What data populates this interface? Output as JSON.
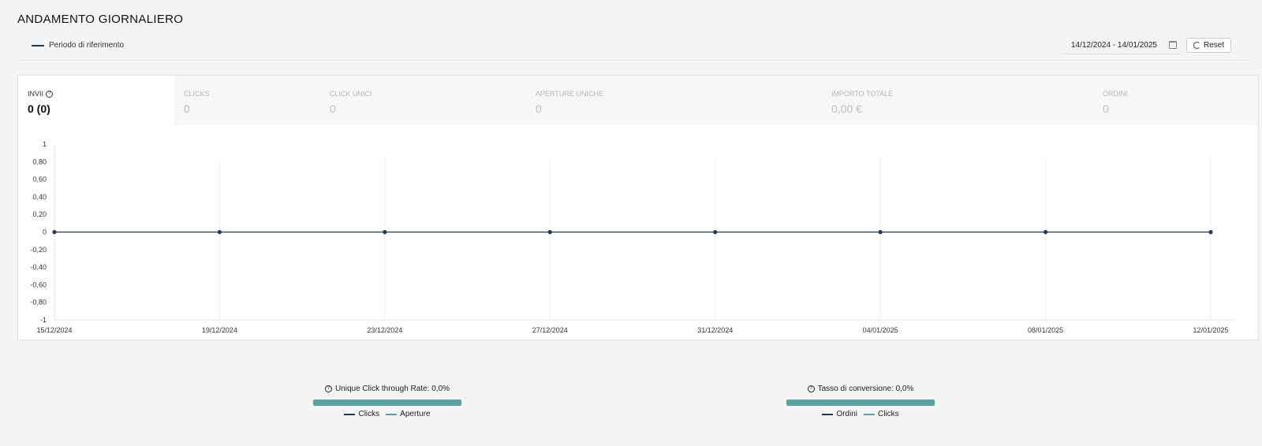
{
  "header": {
    "title": "ANDAMENTO GIORNALIERO",
    "legend_label": "Periodo di riferimento"
  },
  "date_range": {
    "value": "14/12/2024 - 14/01/2025",
    "reset_label": "Reset"
  },
  "tabs": [
    {
      "label": "INVII",
      "value": "0 (0)",
      "active": true,
      "help": true
    },
    {
      "label": "CLICKS",
      "value": "0"
    },
    {
      "label": "CLICK UNICI",
      "value": "0"
    },
    {
      "label": "APERTURE UNICHE",
      "value": "0"
    },
    {
      "label": "IMPORTO TOTALE",
      "value": "0,00 €"
    },
    {
      "label": "ORDINI",
      "value": "0"
    }
  ],
  "chart_data": {
    "type": "line",
    "x": [
      "15/12/2024",
      "19/12/2024",
      "23/12/2024",
      "27/12/2024",
      "31/12/2024",
      "04/01/2025",
      "08/01/2025",
      "12/01/2025"
    ],
    "series": [
      {
        "values": [
          0,
          0,
          0,
          0,
          0,
          0,
          0,
          0
        ],
        "color": "#1f3b5a"
      }
    ],
    "y_ticks": [
      "1",
      "0,80",
      "0,60",
      "0,40",
      "0,20",
      "0",
      "-0,20",
      "-0,40",
      "-0,60",
      "-0,80",
      "-1"
    ],
    "ylim": [
      -1,
      1
    ],
    "grid": "vertical"
  },
  "metrics": [
    {
      "title": "Unique Click through Rate: 0,0%",
      "legend": [
        "Clicks",
        "Aperture"
      ]
    },
    {
      "title": "Tasso di conversione: 0,0%",
      "legend": [
        "Ordini",
        "Clicks"
      ]
    }
  ],
  "colors": {
    "series_dark": "#1f3b5a",
    "teal": "#5aa1a3"
  }
}
